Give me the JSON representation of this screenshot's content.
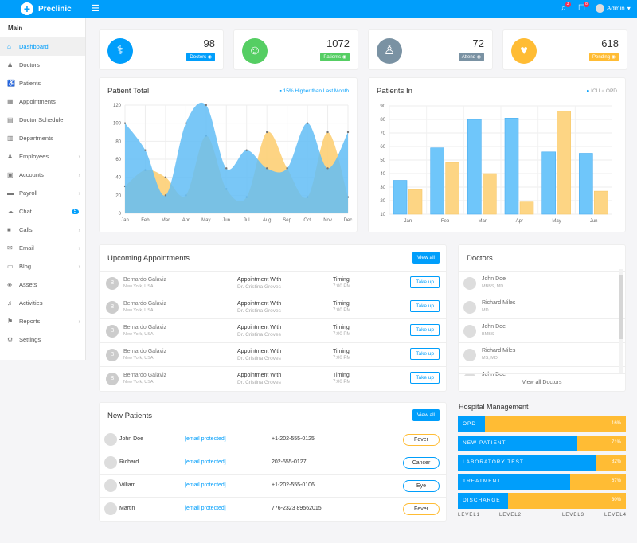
{
  "app": {
    "name": "Preclinic",
    "notif_count": "3",
    "msg_count": "8",
    "user": "Admin"
  },
  "sidebar": {
    "section": "Main",
    "items": [
      {
        "label": "Dashboard",
        "icon": "dashboard-icon",
        "glyph": "⌂",
        "active": true
      },
      {
        "label": "Doctors",
        "icon": "doctor-icon",
        "glyph": "♟"
      },
      {
        "label": "Patients",
        "icon": "wheelchair-icon",
        "glyph": "♿"
      },
      {
        "label": "Appointments",
        "icon": "calendar-icon",
        "glyph": "▦"
      },
      {
        "label": "Doctor Schedule",
        "icon": "calendar-check-icon",
        "glyph": "▤"
      },
      {
        "label": "Departments",
        "icon": "hospital-icon",
        "glyph": "▥"
      },
      {
        "label": "Employees",
        "icon": "user-icon",
        "glyph": "♟",
        "arrow": true
      },
      {
        "label": "Accounts",
        "icon": "money-icon",
        "glyph": "▣",
        "arrow": true
      },
      {
        "label": "Payroll",
        "icon": "book-icon",
        "glyph": "▬",
        "arrow": true
      },
      {
        "label": "Chat",
        "icon": "chat-icon",
        "glyph": "☁",
        "count": "5"
      },
      {
        "label": "Calls",
        "icon": "video-icon",
        "glyph": "■",
        "arrow": true
      },
      {
        "label": "Email",
        "icon": "envelope-icon",
        "glyph": "✉",
        "arrow": true
      },
      {
        "label": "Blog",
        "icon": "blog-icon",
        "glyph": "▭",
        "arrow": true
      },
      {
        "label": "Assets",
        "icon": "cube-icon",
        "glyph": "◈"
      },
      {
        "label": "Activities",
        "icon": "bell-icon",
        "glyph": "♫"
      },
      {
        "label": "Reports",
        "icon": "flag-icon",
        "glyph": "⚑",
        "arrow": true
      },
      {
        "label": "Settings",
        "icon": "gear-icon",
        "glyph": "⚙"
      }
    ]
  },
  "stats": [
    {
      "value": "98",
      "label": "Doctors",
      "color": "#009efb",
      "icon": "stethoscope-icon",
      "glyph": "⚕"
    },
    {
      "value": "1072",
      "label": "Patients",
      "color": "#55ce63",
      "icon": "user-icon",
      "glyph": "☺"
    },
    {
      "value": "72",
      "label": "Attend",
      "color": "#7a92a3",
      "icon": "user-md-icon",
      "glyph": "♙"
    },
    {
      "value": "618",
      "label": "Pending",
      "color": "#ffbc34",
      "icon": "heartbeat-icon",
      "glyph": "♥"
    }
  ],
  "chart_data": [
    {
      "type": "area",
      "title": "Patient Total",
      "note": "15% Higher than Last Month",
      "categories": [
        "Jan",
        "Feb",
        "Mar",
        "Apr",
        "May",
        "Jun",
        "Jul",
        "Aug",
        "Sep",
        "Oct",
        "Nov",
        "Dec"
      ],
      "ylim": [
        0,
        120
      ],
      "yticks": [
        0,
        20,
        40,
        60,
        80,
        100,
        120
      ],
      "grid": true,
      "series": [
        {
          "values": [
            100,
            70,
            20,
            100,
            120,
            50,
            70,
            50,
            50,
            100,
            50,
            90
          ],
          "color": "#62bdf6"
        },
        {
          "values": [
            30,
            48,
            40,
            20,
            86,
            27,
            18,
            90,
            50,
            18,
            90,
            18
          ],
          "color": "#fdcf75"
        }
      ]
    },
    {
      "type": "bar",
      "title": "Patients In",
      "categories": [
        "Jan",
        "Feb",
        "Mar",
        "Apr",
        "May",
        "Jun"
      ],
      "ylim": [
        10,
        90
      ],
      "yticks": [
        10,
        20,
        30,
        40,
        50,
        60,
        70,
        80,
        90
      ],
      "grid": true,
      "legend": "top-right",
      "series": [
        {
          "name": "ICU",
          "values": [
            35,
            59,
            80,
            81,
            56,
            55
          ],
          "color": "#6fc6fa"
        },
        {
          "name": "OPD",
          "values": [
            28,
            48,
            40,
            19,
            86,
            27
          ],
          "color": "#fdd584"
        }
      ]
    }
  ],
  "appointments": {
    "title": "Upcoming Appointments",
    "view_all": "View all",
    "rows": [
      {
        "initial": "B",
        "name": "Bernardo Galaviz",
        "location": "New York, USA",
        "with_label": "Appointment With",
        "doctor": "Dr. Cristina Groves",
        "timing_label": "Timing",
        "time": "7:00 PM",
        "action": "Take up"
      },
      {
        "initial": "B",
        "name": "Bernardo Galaviz",
        "location": "New York, USA",
        "with_label": "Appointment With",
        "doctor": "Dr. Cristina Groves",
        "timing_label": "Timing",
        "time": "7:00 PM",
        "action": "Take up"
      },
      {
        "initial": "B",
        "name": "Bernardo Galaviz",
        "location": "New York, USA",
        "with_label": "Appointment With",
        "doctor": "Dr. Cristina Groves",
        "timing_label": "Timing",
        "time": "7:00 PM",
        "action": "Take up"
      },
      {
        "initial": "B",
        "name": "Bernardo Galaviz",
        "location": "New York, USA",
        "with_label": "Appointment With",
        "doctor": "Dr. Cristina Groves",
        "timing_label": "Timing",
        "time": "7:00 PM",
        "action": "Take up"
      },
      {
        "initial": "B",
        "name": "Bernardo Galaviz",
        "location": "New York, USA",
        "with_label": "Appointment With",
        "doctor": "Dr. Cristina Groves",
        "timing_label": "Timing",
        "time": "7:00 PM",
        "action": "Take up"
      }
    ]
  },
  "doctors": {
    "title": "Doctors",
    "view_all": "View all Doctors",
    "items": [
      {
        "name": "John Doe",
        "degree": "MBBS, MD"
      },
      {
        "name": "Richard Miles",
        "degree": "MD"
      },
      {
        "name": "John Doe",
        "degree": "BMBS"
      },
      {
        "name": "Richard Miles",
        "degree": "MS, MD"
      },
      {
        "name": "John Doe",
        "degree": ""
      }
    ]
  },
  "new_patients": {
    "title": "New Patients",
    "view_all": "View all",
    "rows": [
      {
        "name": "John Doe",
        "email": "[email protected]",
        "phone": "+1-202-555-0125",
        "tag": "Fever",
        "tag_color": "#ffbc34"
      },
      {
        "name": "Richard",
        "email": "[email protected]",
        "phone": "202-555-0127",
        "tag": "Cancer",
        "tag_color": "#009efb"
      },
      {
        "name": "Villiam",
        "email": "[email protected]",
        "phone": "+1-202-555-0106",
        "tag": "Eye",
        "tag_color": "#009efb"
      },
      {
        "name": "Martin",
        "email": "[email protected]",
        "phone": "776-2323 89562015",
        "tag": "Fever",
        "tag_color": "#ffbc34"
      }
    ]
  },
  "hospital": {
    "title": "Hospital Management",
    "bars": [
      {
        "label": "OPD",
        "percent": 16,
        "text": "16%"
      },
      {
        "label": "NEW PATIENT",
        "percent": 71,
        "text": "71%"
      },
      {
        "label": "LABORATORY TEST",
        "percent": 82,
        "text": "82%"
      },
      {
        "label": "TREATMENT",
        "percent": 67,
        "text": "67%"
      },
      {
        "label": "DISCHARGE",
        "percent": 30,
        "text": "30%"
      }
    ],
    "levels": [
      "LEVEL1",
      "LEVEL2",
      "LEVEL3",
      "LEVEL4"
    ]
  }
}
